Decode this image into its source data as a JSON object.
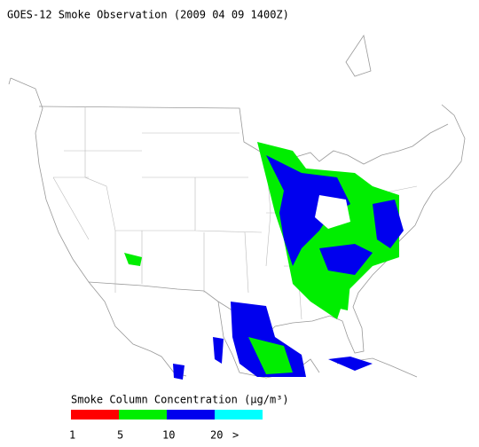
{
  "title": "GOES-12 Smoke Observation (2009 04 09  1400Z)",
  "legend": {
    "title": "Smoke Column Concentration (μg/m³)",
    "colors": [
      "#ff0000",
      "#00ee00",
      "#0000ee",
      "#00ffff"
    ],
    "labels": [
      "1",
      "5",
      "10",
      "20",
      ">"
    ]
  }
}
